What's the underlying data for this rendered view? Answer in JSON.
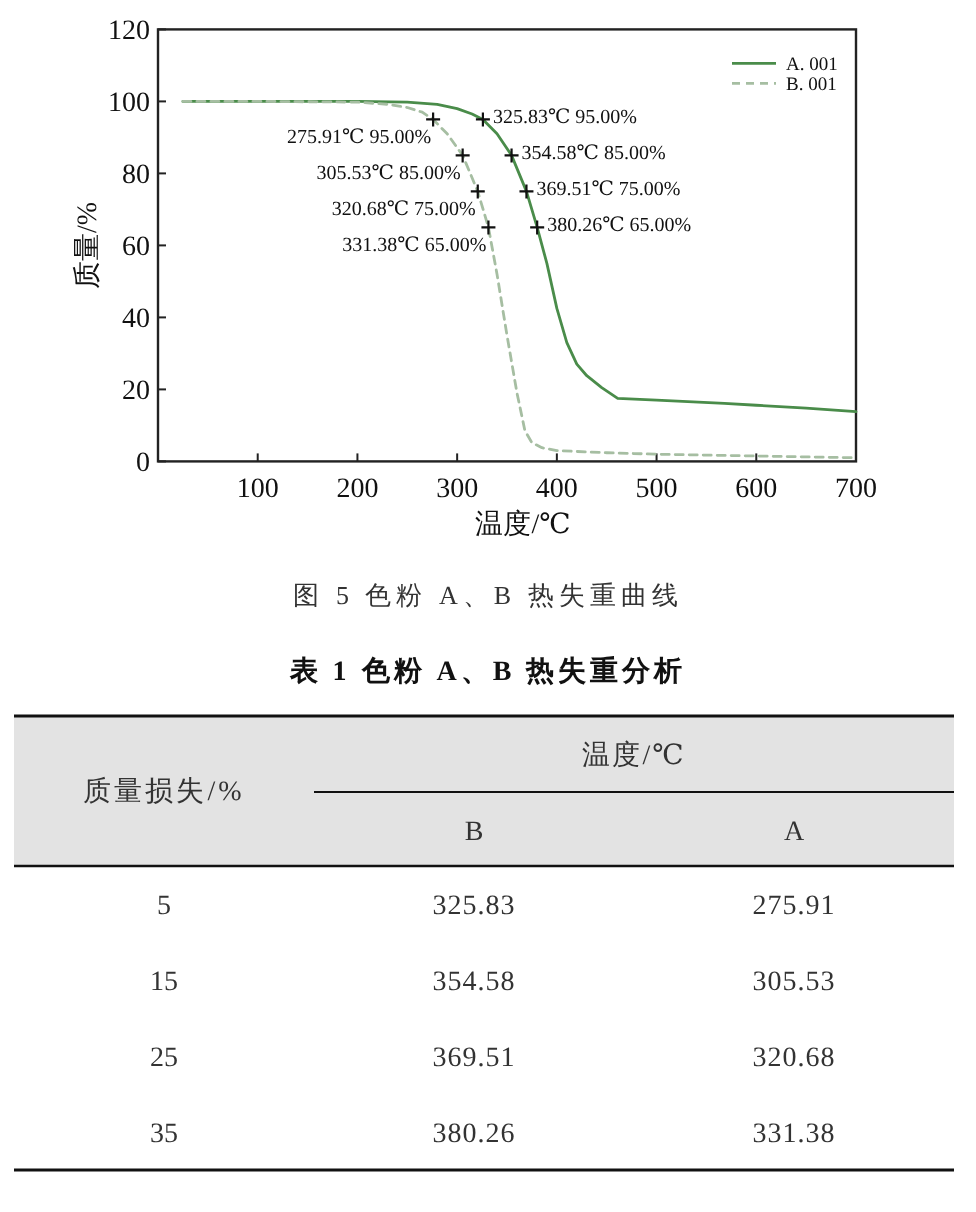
{
  "chart_data": [
    {
      "type": "line",
      "xlabel": "温度/℃",
      "ylabel": "质量/%",
      "xlim": [
        0,
        700
      ],
      "xticks": [
        100,
        200,
        300,
        400,
        500,
        600,
        700
      ],
      "ylim": [
        0,
        120
      ],
      "yticks": [
        0,
        20,
        40,
        60,
        80,
        100,
        120
      ],
      "legend": "top right",
      "series": [
        {
          "name": "A. 001",
          "color": "#4a8c4a",
          "line_style": "solid",
          "x": [
            25,
            100,
            200,
            250,
            280,
            300,
            315,
            325.83,
            340,
            354.58,
            369.51,
            380.26,
            390,
            400,
            410,
            420,
            430,
            445,
            461,
            500,
            568,
            600,
            650,
            700
          ],
          "values": [
            100,
            100,
            100,
            99.8,
            99.2,
            98,
            96.5,
            95,
            91,
            85,
            75,
            65,
            55,
            42.5,
            33,
            27,
            23.8,
            20.5,
            17.5,
            17,
            16.1,
            15.6,
            14.8,
            13.8
          ]
        },
        {
          "name": "B. 001",
          "color": "#a6bea2",
          "line_style": "dashed",
          "x": [
            25,
            100,
            200,
            230,
            250,
            265,
            275.91,
            290,
            305.53,
            320.68,
            331.38,
            340,
            350,
            360,
            368,
            375,
            385,
            400,
            450,
            500,
            600,
            700
          ],
          "values": [
            100,
            100,
            99.8,
            99.2,
            98.3,
            97,
            95,
            91,
            85,
            75,
            65,
            52,
            35,
            19,
            8.5,
            5.2,
            3.8,
            3,
            2.4,
            2,
            1.5,
            1
          ]
        },
        {
          "type": "scatter",
          "marker": "cross",
          "color": "#111111",
          "x": [
            325.83,
            354.58,
            369.51,
            380.26,
            275.91,
            305.53,
            320.68,
            331.38
          ],
          "values": [
            95,
            85,
            75,
            65,
            95,
            85,
            75,
            65
          ]
        }
      ],
      "annotations": [
        {
          "text": "325.83℃ 95.00%",
          "x": 325.83,
          "y": 95
        },
        {
          "text": "354.58℃ 85.00%",
          "x": 354.58,
          "y": 85
        },
        {
          "text": "369.51℃ 75.00%",
          "x": 369.51,
          "y": 75
        },
        {
          "text": "380.26℃ 65.00%",
          "x": 380.26,
          "y": 65
        },
        {
          "text": "275.91℃ 95.00%",
          "x": 275.91,
          "y": 95
        },
        {
          "text": "305.53℃ 85.00%",
          "x": 305.53,
          "y": 85
        },
        {
          "text": "320.68℃ 75.00%",
          "x": 320.68,
          "y": 75
        },
        {
          "text": "331.38℃ 65.00%",
          "x": 331.38,
          "y": 65
        },
        "图 5 色粉 A、B 热失重曲线"
      ]
    },
    {
      "type": "heatmap",
      "title": "表 1 色粉 A、B 热失重分析",
      "xlabel": "温度/℃",
      "ylabel": "质量损失/%",
      "categories": [
        "B",
        "A"
      ],
      "y_categories": [
        "5",
        "15",
        "25",
        "35"
      ],
      "cells": [
        [
          325.83,
          275.91
        ],
        [
          354.58,
          305.53
        ],
        [
          369.51,
          320.68
        ],
        [
          380.26,
          331.38
        ]
      ],
      "data_labels": true
    }
  ]
}
